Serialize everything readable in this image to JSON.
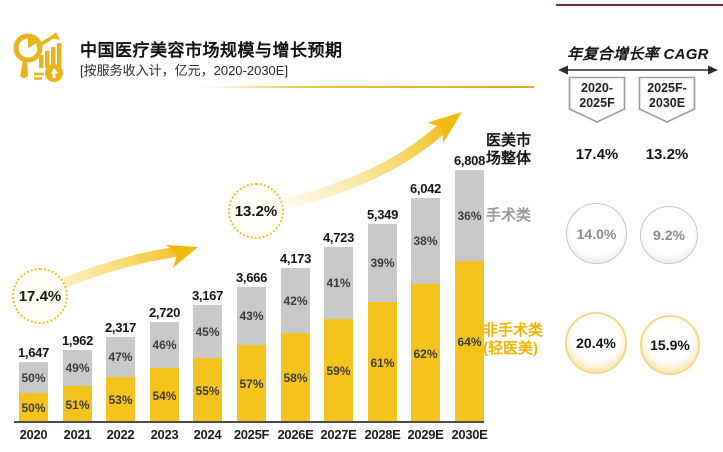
{
  "header": {
    "title": "中国医疗美容市场规模与增长预期",
    "subtitle": "[按服务收入计，亿元，2020-2030E]",
    "icon": "market-analysis-icon"
  },
  "colors": {
    "gold_bar": "#F5C31D",
    "gray_bar": "#C9C9C9",
    "gold_text": "#F0B400",
    "gray_text": "#9A9A9A",
    "dark_text": "#141414",
    "axis": "#4C4C4C",
    "top_rule": "#7E2B33",
    "arrow_gold": "#F0B90B"
  },
  "chart_data": {
    "type": "bar",
    "stacked": true,
    "title": "中国医疗美容市场规模与增长预期",
    "unit_note": "按服务收入计，亿元，2020-2030E",
    "categories": [
      "2020",
      "2021",
      "2022",
      "2023",
      "2024",
      "2025F",
      "2026E",
      "2027E",
      "2028E",
      "2029E",
      "2030E"
    ],
    "totals": [
      1647,
      1962,
      2317,
      2720,
      3167,
      3666,
      4173,
      4723,
      5349,
      6042,
      6808
    ],
    "total_labels": [
      "1,647",
      "1,962",
      "2,317",
      "2,720",
      "3,167",
      "3,666",
      "4,173",
      "4,723",
      "5,349",
      "6,042",
      "6,808"
    ],
    "series": [
      {
        "name": "手术类",
        "key": "surgical",
        "color": "#C9C9C9",
        "share_pct": [
          50,
          49,
          47,
          46,
          45,
          43,
          42,
          41,
          39,
          38,
          36
        ],
        "share_labels": [
          "50%",
          "49%",
          "47%",
          "46%",
          "45%",
          "43%",
          "42%",
          "41%",
          "39%",
          "38%",
          "36%"
        ]
      },
      {
        "name": "非手术类(轻医美)",
        "key": "nonsurgical",
        "color": "#F5C31D",
        "share_pct": [
          50,
          51,
          53,
          54,
          55,
          57,
          58,
          59,
          61,
          62,
          64
        ],
        "share_labels": [
          "50%",
          "51%",
          "53%",
          "54%",
          "55%",
          "57%",
          "58%",
          "59%",
          "61%",
          "62%",
          "64%"
        ]
      }
    ],
    "annotations": [
      {
        "text": "17.4%"
      },
      {
        "text": "13.2%"
      }
    ],
    "legend_position": "right",
    "grid": false
  },
  "chart_labels": {
    "overall_line1": "医美市",
    "overall_line2": "场整体",
    "surgical": "手术类",
    "nonsurgical_line1": "非手术类",
    "nonsurgical_line2": "(轻医美)",
    "cagr_callout_1": "17.4%",
    "cagr_callout_2": "13.2%"
  },
  "cagr_panel": {
    "title": "年复合增长率 CAGR",
    "periods": [
      {
        "line1": "2020-",
        "line2": "2025F"
      },
      {
        "line1": "2025F-",
        "line2": "2030E"
      }
    ],
    "rows": [
      {
        "label": "医美市场整体",
        "values": [
          "17.4%",
          "13.2%"
        ]
      },
      {
        "label": "手术类",
        "values": [
          "14.0%",
          "9.2%"
        ]
      },
      {
        "label": "非手术类(轻医美)",
        "values": [
          "20.4%",
          "15.9%"
        ]
      }
    ]
  }
}
